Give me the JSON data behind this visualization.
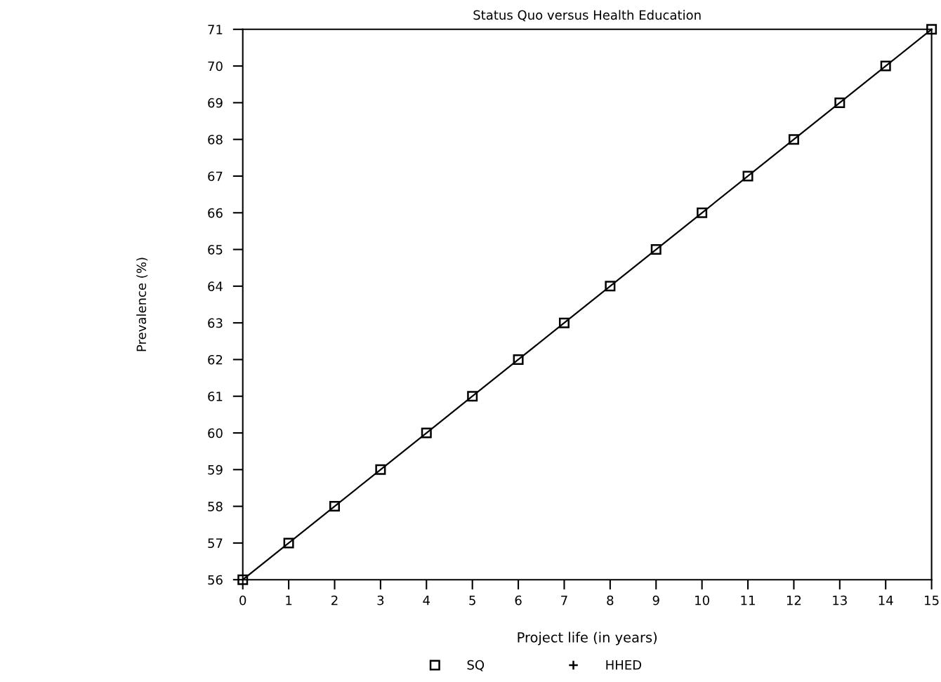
{
  "chart_data": {
    "type": "line",
    "title": "Status Quo versus Health Education",
    "xlabel": "Project life (in years)",
    "ylabel": "Prevalence (%)",
    "x": [
      0,
      1,
      2,
      3,
      4,
      5,
      6,
      7,
      8,
      9,
      10,
      11,
      12,
      13,
      14,
      15
    ],
    "series": [
      {
        "name": "SQ",
        "color": "#000000",
        "marker": "square",
        "values": [
          56,
          57,
          58,
          59,
          60,
          61,
          62,
          63,
          64,
          65,
          66,
          67,
          68,
          69,
          70,
          71
        ]
      },
      {
        "name": "HHED",
        "color": "#000000",
        "marker": "cross",
        "values": [
          null,
          null,
          null,
          null,
          null,
          null,
          null,
          null,
          null,
          null,
          null,
          null,
          null,
          null,
          null,
          null
        ]
      }
    ],
    "xlim": [
      0,
      15
    ],
    "xticks": [
      0,
      1,
      2,
      3,
      4,
      5,
      6,
      7,
      8,
      9,
      10,
      11,
      12,
      13,
      14,
      15
    ],
    "ylim": [
      56,
      71
    ],
    "yticks": [
      56,
      57,
      58,
      59,
      60,
      61,
      62,
      63,
      64,
      65,
      66,
      67,
      68,
      69,
      70,
      71
    ],
    "grid": false,
    "legend": "bottom",
    "line_style": "solid"
  }
}
